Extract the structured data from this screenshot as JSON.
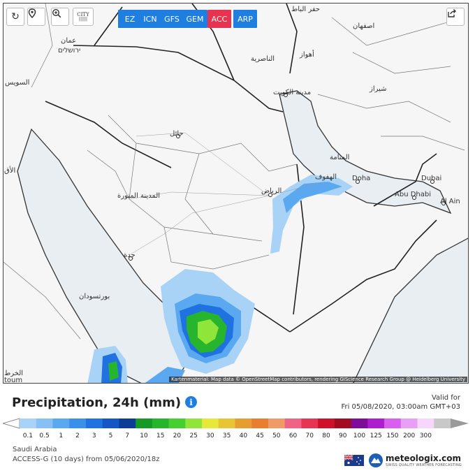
{
  "toolbar": {
    "city_label": "CITY",
    "models": [
      {
        "label": "EZ",
        "active": false
      },
      {
        "label": "ICN",
        "active": false
      },
      {
        "label": "GFS",
        "active": false
      },
      {
        "label": "GEM",
        "active": false
      },
      {
        "label": "ACC",
        "active": true
      },
      {
        "label": "ARP",
        "active": false
      }
    ]
  },
  "map": {
    "places": [
      {
        "name": "حفر الباطن",
        "text": "حفر الباط"
      },
      {
        "name": "اصفهان",
        "text": "اصفهان"
      },
      {
        "name": "عمان",
        "text": "عمان"
      },
      {
        "name": "ירושלים",
        "text": "ירושלים"
      },
      {
        "name": "الناصرية",
        "text": "الناصرية"
      },
      {
        "name": "أهواز",
        "text": "أهواز"
      },
      {
        "name": "السويس",
        "text": "السويس"
      },
      {
        "name": "شيراز",
        "text": "شيراز"
      },
      {
        "name": "مدينة الكويت",
        "text": "مدينة الكويت"
      },
      {
        "name": "حائل",
        "text": "حائل"
      },
      {
        "name": "المنامة",
        "text": "المنامة"
      },
      {
        "name": "الهفوف",
        "text": "الهفوف"
      },
      {
        "name": "الرياض",
        "text": "الرياض"
      },
      {
        "name": "Doha",
        "text": "Doha"
      },
      {
        "name": "Dubai",
        "text": "Dubai"
      },
      {
        "name": "Abu Dhabi",
        "text": "Abu Dhabi"
      },
      {
        "name": "Al Ain",
        "text": "Al Ain"
      },
      {
        "name": "المدينة المنورة",
        "text": "المدينة المنورة"
      },
      {
        "name": "جدة",
        "text": "جدة"
      },
      {
        "name": "بورتسودان",
        "text": "بورتسودان"
      },
      {
        "name": "الأق",
        "text": "الأق"
      },
      {
        "name": "الخرط",
        "text": "الخرط"
      },
      {
        "name": "toum",
        "text": "toum"
      }
    ],
    "attribution": "Kartenmaterial: Map data © OpenStreetMap contributors, rendering GIScience Research Group @ Heidelberg University"
  },
  "legend": {
    "title": "Precipitation, 24h (mm)",
    "valid_for_label": "Valid for",
    "valid_time": "Fri 05/08/2020, 03:00am GMT+03",
    "ticks": [
      "0.1",
      "0.5",
      "1",
      "2",
      "3",
      "5",
      "7",
      "10",
      "15",
      "20",
      "25",
      "30",
      "35",
      "40",
      "45",
      "50",
      "60",
      "70",
      "80",
      "90",
      "100",
      "125",
      "150",
      "200",
      "300"
    ],
    "colors": [
      "#a8d3f7",
      "#86c0f4",
      "#5aa8ef",
      "#3a8fea",
      "#1f72e0",
      "#1556c6",
      "#0d3c98",
      "#149a25",
      "#27b52d",
      "#46d02f",
      "#8fe53a",
      "#e6e83a",
      "#e8c534",
      "#e89d30",
      "#e87e2e",
      "#ef9a67",
      "#f06385",
      "#e83453",
      "#cf102b",
      "#a30b1f",
      "#7e0e9a",
      "#ad1ecf",
      "#d95ff0",
      "#e89ff5",
      "#f6d6fb",
      "#c8c8c8"
    ],
    "region": "Saudi Arabia",
    "model_run": "ACCESS-G  (10 days)  from 05/06/2020/18z"
  },
  "brand": {
    "name": "meteologix.com",
    "tagline": "SWISS QUALITY WEATHER FORECASTING"
  }
}
